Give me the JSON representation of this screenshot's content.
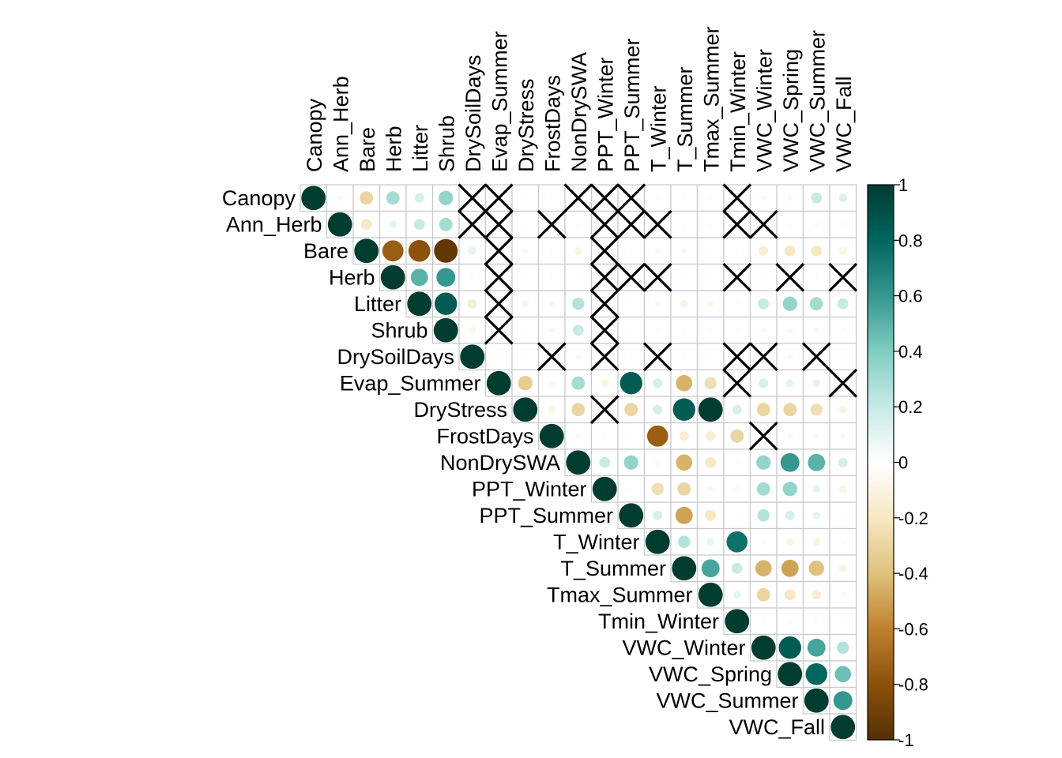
{
  "chart_data": {
    "type": "heatmap",
    "subtype": "upper-triangle correlation matrix (circles), non-significant cells crossed out",
    "variables": [
      "Canopy",
      "Ann_Herb",
      "Bare",
      "Herb",
      "Litter",
      "Shrub",
      "DrySoilDays",
      "Evap_Summer",
      "DryStress",
      "FrostDays",
      "NonDrySWA",
      "PPT_Winter",
      "PPT_Summer",
      "T_Winter",
      "T_Summer",
      "Tmax_Summer",
      "Tmin_Winter",
      "VWC_Winter",
      "VWC_Spring",
      "VWC_Summer",
      "VWC_Fall"
    ],
    "rows": [
      [
        1,
        0.05,
        -0.3,
        0.3,
        0.15,
        0.35,
        0.02,
        0.02,
        0.02,
        0.02,
        0.02,
        0.02,
        0.02,
        0.02,
        0.02,
        0.02,
        0.02,
        0.05,
        0.05,
        0.2,
        0.12
      ],
      [
        null,
        1,
        -0.2,
        0.1,
        0.2,
        0.3,
        0.02,
        0.02,
        0.02,
        0.02,
        0.02,
        0.02,
        0.02,
        0.02,
        0.02,
        0.02,
        0.02,
        0.02,
        0.02,
        0.03,
        0.03
      ],
      [
        null,
        null,
        1,
        -0.75,
        -0.8,
        -0.95,
        0.1,
        0.05,
        0.05,
        0.02,
        -0.1,
        0.02,
        0.02,
        0.05,
        0.05,
        0.02,
        0.02,
        -0.15,
        -0.2,
        -0.2,
        -0.1
      ],
      [
        null,
        null,
        null,
        1,
        0.5,
        0.6,
        -0.03,
        0.02,
        0.02,
        0.02,
        0.02,
        0.02,
        0.02,
        0.02,
        0.02,
        0.02,
        0.02,
        0.02,
        0.02,
        0.02,
        0.02
      ],
      [
        null,
        null,
        null,
        null,
        1,
        0.85,
        -0.15,
        0.02,
        -0.08,
        0.05,
        0.25,
        0.02,
        0.02,
        0.05,
        -0.1,
        -0.08,
        0.02,
        0.2,
        0.35,
        0.3,
        0.2
      ],
      [
        null,
        null,
        null,
        null,
        null,
        1,
        -0.08,
        0.02,
        0.02,
        0.05,
        0.2,
        0.02,
        0.02,
        0.02,
        0.02,
        0.02,
        0.02,
        0.05,
        0.05,
        0.05,
        0.03
      ],
      [
        null,
        null,
        null,
        null,
        null,
        null,
        1,
        0.02,
        0.02,
        0.02,
        0.05,
        0.02,
        0.02,
        0.02,
        0.02,
        0.02,
        0.02,
        0.02,
        0.05,
        0.02,
        0.02
      ],
      [
        null,
        null,
        null,
        null,
        null,
        null,
        null,
        1,
        -0.35,
        0.05,
        0.3,
        -0.1,
        0.85,
        0.15,
        -0.45,
        -0.25,
        0.02,
        0.15,
        0.1,
        0.1,
        0.02
      ],
      [
        null,
        null,
        null,
        null,
        null,
        null,
        null,
        null,
        1,
        -0.1,
        -0.3,
        0.02,
        -0.3,
        0.15,
        0.85,
        1,
        0.15,
        -0.3,
        -0.3,
        -0.25,
        -0.1
      ],
      [
        null,
        null,
        null,
        null,
        null,
        null,
        null,
        null,
        null,
        1,
        0.05,
        0.02,
        0.02,
        -0.75,
        -0.15,
        -0.15,
        -0.3,
        0.02,
        0.05,
        0.05,
        0.05
      ],
      [
        null,
        null,
        null,
        null,
        null,
        null,
        null,
        null,
        null,
        null,
        1,
        0.2,
        0.35,
        -0.05,
        -0.45,
        -0.2,
        0.02,
        0.35,
        0.6,
        0.5,
        0.15
      ],
      [
        null,
        null,
        null,
        null,
        null,
        null,
        null,
        null,
        null,
        null,
        null,
        1,
        0.02,
        -0.25,
        -0.3,
        0.05,
        -0.05,
        0.3,
        0.35,
        0.1,
        -0.1
      ],
      [
        null,
        null,
        null,
        null,
        null,
        null,
        null,
        null,
        null,
        null,
        null,
        null,
        1,
        0.15,
        -0.5,
        -0.2,
        0.02,
        0.25,
        0.15,
        0.1,
        0.02
      ],
      [
        null,
        null,
        null,
        null,
        null,
        null,
        null,
        null,
        null,
        null,
        null,
        null,
        null,
        1,
        0.25,
        0.1,
        0.75,
        -0.05,
        -0.1,
        -0.1,
        0.03
      ],
      [
        null,
        null,
        null,
        null,
        null,
        null,
        null,
        null,
        null,
        null,
        null,
        null,
        null,
        null,
        1,
        0.55,
        0.2,
        -0.45,
        -0.5,
        -0.4,
        -0.1
      ],
      [
        null,
        null,
        null,
        null,
        null,
        null,
        null,
        null,
        null,
        null,
        null,
        null,
        null,
        null,
        null,
        1,
        0.1,
        -0.3,
        -0.2,
        -0.15,
        -0.05
      ],
      [
        null,
        null,
        null,
        null,
        null,
        null,
        null,
        null,
        null,
        null,
        null,
        null,
        null,
        null,
        null,
        null,
        1,
        0.02,
        -0.05,
        -0.03,
        0.02
      ],
      [
        null,
        null,
        null,
        null,
        null,
        null,
        null,
        null,
        null,
        null,
        null,
        null,
        null,
        null,
        null,
        null,
        null,
        1,
        0.85,
        0.55,
        0.25
      ],
      [
        null,
        null,
        null,
        null,
        null,
        null,
        null,
        null,
        null,
        null,
        null,
        null,
        null,
        null,
        null,
        null,
        null,
        null,
        1,
        0.8,
        0.45
      ],
      [
        null,
        null,
        null,
        null,
        null,
        null,
        null,
        null,
        null,
        null,
        null,
        null,
        null,
        null,
        null,
        null,
        null,
        null,
        null,
        1,
        0.6
      ],
      [
        null,
        null,
        null,
        null,
        null,
        null,
        null,
        null,
        null,
        null,
        null,
        null,
        null,
        null,
        null,
        null,
        null,
        null,
        null,
        null,
        1
      ]
    ],
    "nonsignificant_cells": [
      [
        0,
        6
      ],
      [
        0,
        7
      ],
      [
        0,
        10
      ],
      [
        0,
        11
      ],
      [
        0,
        12
      ],
      [
        0,
        16
      ],
      [
        1,
        6
      ],
      [
        1,
        7
      ],
      [
        1,
        9
      ],
      [
        1,
        11
      ],
      [
        1,
        12
      ],
      [
        1,
        13
      ],
      [
        1,
        16
      ],
      [
        1,
        17
      ],
      [
        2,
        7
      ],
      [
        2,
        11
      ],
      [
        3,
        7
      ],
      [
        3,
        11
      ],
      [
        3,
        12
      ],
      [
        3,
        13
      ],
      [
        3,
        16
      ],
      [
        3,
        18
      ],
      [
        3,
        20
      ],
      [
        4,
        7
      ],
      [
        4,
        11
      ],
      [
        5,
        7
      ],
      [
        5,
        11
      ],
      [
        6,
        9
      ],
      [
        6,
        11
      ],
      [
        6,
        13
      ],
      [
        6,
        16
      ],
      [
        6,
        17
      ],
      [
        6,
        19
      ],
      [
        7,
        16
      ],
      [
        7,
        20
      ],
      [
        8,
        11
      ],
      [
        9,
        17
      ]
    ],
    "color_scale": {
      "ticks": [
        "1",
        "0.8",
        "0.6",
        "0.4",
        "0.2",
        "0",
        "-0.2",
        "-0.4",
        "-0.6",
        "-0.8",
        "-1"
      ],
      "range": [
        -1,
        1
      ],
      "negative_color": "#543005",
      "zero_color": "#FFFFFF",
      "positive_color": "#003C30",
      "palette": [
        "#543005",
        "#8C510A",
        "#BF812D",
        "#DFC27D",
        "#F6E8C3",
        "#FFFFFF",
        "#C7EAE5",
        "#80CDC1",
        "#35978F",
        "#01665E",
        "#003C30"
      ]
    },
    "grid": true,
    "legend": "right"
  }
}
